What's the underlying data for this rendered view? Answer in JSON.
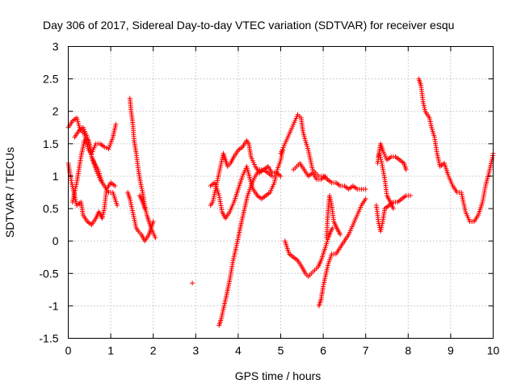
{
  "chart_data": {
    "type": "scatter",
    "title": "Day 306 of 2017, Sidereal Day-to-day VTEC variation (SDTVAR) for receiver esqu",
    "xlabel": "GPS time / hours",
    "ylabel": "SDTVAR / TECUs",
    "xlim": [
      0,
      10
    ],
    "ylim": [
      -1.5,
      3
    ],
    "xticks": [
      "0",
      "1",
      "2",
      "3",
      "4",
      "5",
      "6",
      "7",
      "8",
      "9",
      "10"
    ],
    "yticks": [
      "-1.5",
      "-1",
      "-0.5",
      "0",
      "0.5",
      "1",
      "1.5",
      "2",
      "2.5",
      "3"
    ],
    "grid": true,
    "marker": "+",
    "series_color": "#ff0000",
    "segments": [
      [
        [
          0.0,
          1.75
        ],
        [
          0.1,
          1.85
        ],
        [
          0.2,
          1.9
        ],
        [
          0.28,
          1.72
        ],
        [
          0.38,
          1.65
        ],
        [
          0.48,
          1.4
        ],
        [
          0.55,
          1.35
        ],
        [
          0.65,
          1.5
        ],
        [
          0.75,
          1.5
        ],
        [
          0.85,
          1.45
        ],
        [
          0.95,
          1.42
        ],
        [
          1.05,
          1.6
        ],
        [
          1.12,
          1.8
        ]
      ],
      [
        [
          0.0,
          1.2
        ],
        [
          0.08,
          0.9
        ],
        [
          0.15,
          0.7
        ],
        [
          0.2,
          0.55
        ],
        [
          0.3,
          0.6
        ],
        [
          0.35,
          0.4
        ],
        [
          0.45,
          0.3
        ],
        [
          0.55,
          0.25
        ],
        [
          0.65,
          0.35
        ],
        [
          0.72,
          0.45
        ],
        [
          0.8,
          0.35
        ],
        [
          0.85,
          0.5
        ],
        [
          0.9,
          0.8
        ],
        [
          1.0,
          0.9
        ],
        [
          1.1,
          0.85
        ]
      ],
      [
        [
          0.1,
          0.6
        ],
        [
          0.2,
          0.9
        ],
        [
          0.3,
          1.3
        ],
        [
          0.38,
          1.55
        ],
        [
          0.48,
          1.55
        ],
        [
          0.55,
          1.3
        ],
        [
          0.65,
          1.1
        ],
        [
          0.75,
          0.95
        ],
        [
          0.85,
          0.85
        ],
        [
          0.95,
          0.75
        ],
        [
          1.05,
          0.75
        ],
        [
          1.15,
          0.55
        ]
      ],
      [
        [
          0.15,
          1.6
        ],
        [
          0.25,
          1.7
        ],
        [
          0.35,
          1.75
        ],
        [
          0.45,
          1.6
        ],
        [
          0.55,
          1.3
        ],
        [
          0.62,
          1.2
        ],
        [
          0.7,
          1.1
        ],
        [
          0.8,
          0.9
        ]
      ],
      [
        [
          1.45,
          2.2
        ],
        [
          1.48,
          2.0
        ],
        [
          1.52,
          1.8
        ],
        [
          1.55,
          1.55
        ],
        [
          1.6,
          1.35
        ],
        [
          1.65,
          1.1
        ],
        [
          1.7,
          0.9
        ],
        [
          1.75,
          0.75
        ],
        [
          1.8,
          0.55
        ],
        [
          1.85,
          0.4
        ],
        [
          1.9,
          0.3
        ],
        [
          1.95,
          0.2
        ],
        [
          2.05,
          0.05
        ]
      ],
      [
        [
          1.4,
          0.75
        ],
        [
          1.45,
          0.65
        ],
        [
          1.5,
          0.5
        ],
        [
          1.55,
          0.35
        ],
        [
          1.6,
          0.2
        ],
        [
          1.65,
          0.15
        ],
        [
          1.72,
          0.1
        ],
        [
          1.8,
          0.0
        ],
        [
          1.9,
          0.1
        ],
        [
          1.95,
          0.2
        ],
        [
          2.0,
          0.3
        ]
      ],
      [
        [
          1.68,
          0.7
        ],
        [
          1.75,
          0.6
        ],
        [
          1.8,
          0.5
        ]
      ],
      [
        [
          2.92,
          -0.65
        ]
      ],
      [
        [
          3.35,
          0.55
        ],
        [
          3.4,
          0.6
        ],
        [
          3.45,
          0.75
        ],
        [
          3.5,
          0.9
        ],
        [
          3.55,
          1.05
        ],
        [
          3.6,
          1.2
        ],
        [
          3.65,
          1.35
        ],
        [
          3.7,
          1.25
        ],
        [
          3.75,
          1.15
        ],
        [
          3.82,
          1.2
        ],
        [
          3.9,
          1.3
        ],
        [
          3.95,
          1.35
        ],
        [
          4.0,
          1.4
        ],
        [
          4.1,
          1.45
        ],
        [
          4.2,
          1.55
        ],
        [
          4.25,
          1.5
        ],
        [
          4.3,
          1.3
        ],
        [
          4.4,
          1.15
        ],
        [
          4.5,
          1.05
        ],
        [
          4.6,
          1.1
        ],
        [
          4.7,
          1.15
        ],
        [
          4.8,
          1.05
        ],
        [
          4.9,
          1.05
        ],
        [
          5.0,
          1.0
        ]
      ],
      [
        [
          3.35,
          0.85
        ],
        [
          3.45,
          0.9
        ],
        [
          3.55,
          0.7
        ],
        [
          3.62,
          0.45
        ],
        [
          3.7,
          0.35
        ],
        [
          3.8,
          0.45
        ],
        [
          3.9,
          0.6
        ],
        [
          4.0,
          0.8
        ],
        [
          4.1,
          1.0
        ],
        [
          4.2,
          1.15
        ],
        [
          4.28,
          0.95
        ],
        [
          4.35,
          0.8
        ],
        [
          4.45,
          0.7
        ],
        [
          4.55,
          0.65
        ],
        [
          4.65,
          0.7
        ],
        [
          4.75,
          0.75
        ],
        [
          4.85,
          0.9
        ],
        [
          4.92,
          1.1
        ],
        [
          5.0,
          1.25
        ],
        [
          5.05,
          1.4
        ]
      ],
      [
        [
          3.55,
          -1.3
        ],
        [
          3.6,
          -1.2
        ],
        [
          3.65,
          -1.05
        ],
        [
          3.72,
          -0.85
        ],
        [
          3.8,
          -0.6
        ],
        [
          3.88,
          -0.3
        ],
        [
          3.95,
          -0.1
        ],
        [
          4.0,
          0.05
        ],
        [
          4.08,
          0.3
        ],
        [
          4.15,
          0.5
        ],
        [
          4.22,
          0.7
        ],
        [
          4.3,
          0.85
        ],
        [
          4.4,
          1.0
        ],
        [
          4.5,
          1.1
        ],
        [
          4.6,
          1.1
        ],
        [
          4.7,
          1.05
        ],
        [
          4.8,
          1.0
        ]
      ],
      [
        [
          5.0,
          1.35
        ],
        [
          5.1,
          1.5
        ],
        [
          5.2,
          1.65
        ],
        [
          5.3,
          1.8
        ],
        [
          5.4,
          1.95
        ],
        [
          5.48,
          1.9
        ],
        [
          5.52,
          1.7
        ],
        [
          5.58,
          1.55
        ],
        [
          5.65,
          1.4
        ],
        [
          5.7,
          1.25
        ],
        [
          5.75,
          1.1
        ],
        [
          5.82,
          1.05
        ],
        [
          5.9,
          1.0
        ],
        [
          6.0,
          1.0
        ],
        [
          6.1,
          0.95
        ],
        [
          6.2,
          0.9
        ],
        [
          6.3,
          0.9
        ],
        [
          6.4,
          0.85
        ],
        [
          6.5,
          0.85
        ],
        [
          6.6,
          0.8
        ],
        [
          6.7,
          0.85
        ],
        [
          6.8,
          0.8
        ],
        [
          6.9,
          0.8
        ],
        [
          7.0,
          0.8
        ]
      ],
      [
        [
          5.1,
          0.0
        ],
        [
          5.2,
          -0.2
        ],
        [
          5.3,
          -0.25
        ],
        [
          5.4,
          -0.3
        ],
        [
          5.5,
          -0.4
        ],
        [
          5.58,
          -0.5
        ],
        [
          5.65,
          -0.55
        ],
        [
          5.72,
          -0.5
        ],
        [
          5.8,
          -0.45
        ],
        [
          5.88,
          -0.4
        ],
        [
          5.95,
          -0.3
        ],
        [
          6.05,
          -0.1
        ],
        [
          6.12,
          0.05
        ],
        [
          6.18,
          0.15
        ],
        [
          6.22,
          0.2
        ]
      ],
      [
        [
          5.9,
          -1.0
        ],
        [
          5.95,
          -0.9
        ],
        [
          6.0,
          -0.7
        ],
        [
          6.05,
          -0.55
        ],
        [
          6.12,
          -0.35
        ],
        [
          6.2,
          -0.2
        ],
        [
          6.3,
          -0.2
        ],
        [
          6.4,
          -0.1
        ],
        [
          6.5,
          0.0
        ],
        [
          6.6,
          0.1
        ],
        [
          6.7,
          0.25
        ],
        [
          6.8,
          0.4
        ],
        [
          6.9,
          0.55
        ],
        [
          7.0,
          0.65
        ]
      ],
      [
        [
          6.08,
          0.05
        ],
        [
          6.1,
          0.3
        ],
        [
          6.12,
          0.5
        ],
        [
          6.15,
          0.7
        ],
        [
          6.2,
          0.55
        ],
        [
          6.25,
          0.3
        ],
        [
          6.32,
          0.2
        ],
        [
          6.4,
          0.1
        ]
      ],
      [
        [
          5.3,
          1.1
        ],
        [
          5.38,
          1.15
        ],
        [
          5.45,
          1.2
        ],
        [
          5.55,
          1.1
        ],
        [
          5.65,
          1.0
        ],
        [
          5.75,
          1.05
        ],
        [
          5.85,
          0.95
        ],
        [
          5.95,
          0.95
        ],
        [
          6.05,
          1.0
        ]
      ],
      [
        [
          7.25,
          0.55
        ],
        [
          7.3,
          0.3
        ],
        [
          7.35,
          0.15
        ],
        [
          7.4,
          0.3
        ],
        [
          7.45,
          0.5
        ],
        [
          7.55,
          0.55
        ],
        [
          7.65,
          0.6
        ],
        [
          7.75,
          0.6
        ],
        [
          7.85,
          0.65
        ],
        [
          7.95,
          0.7
        ],
        [
          8.05,
          0.7
        ]
      ],
      [
        [
          7.3,
          1.3
        ],
        [
          7.35,
          1.5
        ],
        [
          7.4,
          1.4
        ],
        [
          7.5,
          1.25
        ],
        [
          7.6,
          1.3
        ],
        [
          7.7,
          1.3
        ],
        [
          7.8,
          1.25
        ],
        [
          7.9,
          1.2
        ],
        [
          7.95,
          1.1
        ]
      ],
      [
        [
          7.28,
          1.2
        ],
        [
          7.32,
          1.35
        ],
        [
          7.38,
          1.2
        ],
        [
          7.45,
          0.95
        ],
        [
          7.5,
          0.7
        ],
        [
          7.58,
          0.6
        ],
        [
          7.65,
          0.5
        ]
      ],
      [
        [
          8.25,
          2.5
        ],
        [
          8.3,
          2.4
        ],
        [
          8.35,
          2.15
        ],
        [
          8.4,
          2.0
        ],
        [
          8.5,
          1.9
        ],
        [
          8.55,
          1.75
        ],
        [
          8.62,
          1.6
        ],
        [
          8.68,
          1.35
        ],
        [
          8.75,
          1.15
        ],
        [
          8.85,
          1.2
        ],
        [
          8.95,
          1.0
        ],
        [
          9.05,
          0.85
        ],
        [
          9.15,
          0.75
        ],
        [
          9.25,
          0.75
        ],
        [
          9.35,
          0.45
        ],
        [
          9.45,
          0.3
        ],
        [
          9.55,
          0.3
        ],
        [
          9.65,
          0.4
        ],
        [
          9.75,
          0.6
        ],
        [
          9.82,
          0.85
        ],
        [
          9.9,
          1.05
        ],
        [
          9.97,
          1.25
        ],
        [
          10.0,
          1.35
        ]
      ]
    ]
  }
}
